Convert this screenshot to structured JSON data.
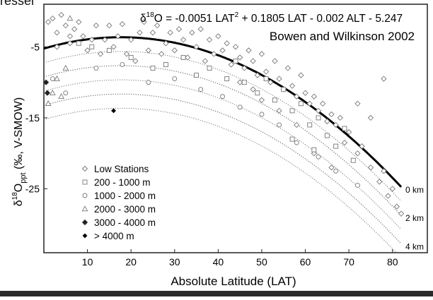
{
  "top_text_fragment": "ressei",
  "chart_data": {
    "type": "scatter",
    "title": "",
    "equation": {
      "prefix": "δ",
      "sup": "18",
      "body": "O = -0.0051 LAT",
      "sup2": "2",
      "rest": " + 0.1805 LAT - 0.002 ALT - 5.247"
    },
    "source": "Bowen and Wilkinson 2002",
    "xlabel": "Absolute Latitude (LAT)",
    "ylabel": {
      "prefix": "δ",
      "sup": "18",
      "main": "O",
      "sub": "ppt",
      "suffix": " (‰, V-SMOW)"
    },
    "xlim": [
      0,
      88
    ],
    "ylim": [
      -34,
      1
    ],
    "xticks": [
      10,
      20,
      30,
      40,
      50,
      60,
      70,
      80
    ],
    "yticks": [
      -5,
      -15,
      -25
    ],
    "curves": [
      {
        "name": "0 km",
        "alt": 0,
        "style": "thick"
      },
      {
        "name": "2 km",
        "alt": 2000,
        "style": "dotted"
      },
      {
        "name": "4 km",
        "alt": 4000,
        "style": "dotted"
      }
    ],
    "extra_dotted_altitudes": [
      1000,
      3000,
      5000
    ],
    "legend": {
      "placement": "bottom-left",
      "entries": [
        {
          "label": "Low Stations",
          "marker": "diamond-open"
        },
        {
          "label": "200 - 1000 m",
          "marker": "square-open"
        },
        {
          "label": "1000 - 2000 m",
          "marker": "circle-open"
        },
        {
          "label": "2000 - 3000 m",
          "marker": "triangle-open"
        },
        {
          "label": "3000 - 4000 m",
          "marker": "diamond-filled"
        },
        {
          "label": "> 4000 m",
          "marker": "small-diamond-filled"
        }
      ]
    },
    "series": [
      {
        "name": "Low Stations",
        "marker": "diamond-open",
        "points": [
          [
            1,
            -1.5
          ],
          [
            2,
            -1.0
          ],
          [
            3,
            -3.0
          ],
          [
            5,
            -2.0
          ],
          [
            6,
            -4.5
          ],
          [
            7,
            -2.5
          ],
          [
            8,
            -1.5
          ],
          [
            9,
            -3.5
          ],
          [
            10,
            -5.5
          ],
          [
            11,
            -4.0
          ],
          [
            12,
            -2.0
          ],
          [
            13,
            -6.0
          ],
          [
            14,
            -4.0
          ],
          [
            15,
            -2.0
          ],
          [
            16,
            -5.0
          ],
          [
            17,
            -3.5
          ],
          [
            18,
            -1.8
          ],
          [
            19,
            -6.0
          ],
          [
            20,
            -4.0
          ],
          [
            21,
            -7.0
          ],
          [
            22,
            -3.0
          ],
          [
            23,
            -1.5
          ],
          [
            24,
            -5.5
          ],
          [
            25,
            -3.0
          ],
          [
            26,
            -2.0
          ],
          [
            27,
            -6.0
          ],
          [
            28,
            -4.5
          ],
          [
            29,
            -3.0
          ],
          [
            30,
            -5.5
          ],
          [
            31,
            -2.5
          ],
          [
            32,
            -4.0
          ],
          [
            33,
            -6.5
          ],
          [
            34,
            -3.0
          ],
          [
            35,
            -5.0
          ],
          [
            36,
            -2.5
          ],
          [
            37,
            -7.0
          ],
          [
            38,
            -4.0
          ],
          [
            39,
            -6.0
          ],
          [
            40,
            -3.5
          ],
          [
            41,
            -5.5
          ],
          [
            42,
            -4.5
          ],
          [
            43,
            -7.5
          ],
          [
            44,
            -5.0
          ],
          [
            45,
            -6.5
          ],
          [
            46,
            -8.0
          ],
          [
            47,
            -5.5
          ],
          [
            48,
            -7.0
          ],
          [
            49,
            -9.0
          ],
          [
            50,
            -6.0
          ],
          [
            51,
            -8.5
          ],
          [
            52,
            -10.0
          ],
          [
            53,
            -7.0
          ],
          [
            54,
            -9.5
          ],
          [
            55,
            -11.0
          ],
          [
            56,
            -8.0
          ],
          [
            57,
            -10.5
          ],
          [
            58,
            -12.0
          ],
          [
            59,
            -9.0
          ],
          [
            60,
            -11.5
          ],
          [
            61,
            -13.0
          ],
          [
            62,
            -12.0
          ],
          [
            63,
            -14.0
          ],
          [
            64,
            -13.0
          ],
          [
            65,
            -15.5
          ],
          [
            66,
            -14.5
          ],
          [
            67,
            -16.0
          ],
          [
            68,
            -15.0
          ],
          [
            69,
            -18.5
          ],
          [
            70,
            -17.0
          ],
          [
            72,
            -20.0
          ],
          [
            73,
            -19.0
          ],
          [
            75,
            -22.0
          ],
          [
            77,
            -24.0
          ],
          [
            78,
            -22.5
          ],
          [
            79,
            -26.0
          ],
          [
            80,
            -25.0
          ],
          [
            81,
            -27.5
          ],
          [
            82,
            -28.5
          ],
          [
            72,
            -13.0
          ],
          [
            75,
            -15.0
          ],
          [
            78,
            -9.5
          ],
          [
            62,
            -20.0
          ],
          [
            66,
            -22.0
          ],
          [
            45,
            -10.0
          ],
          [
            48,
            -11.0
          ],
          [
            50,
            -12.5
          ],
          [
            54,
            -14.0
          ],
          [
            58,
            -16.0
          ],
          [
            3,
            -5.0
          ],
          [
            4,
            -0.5
          ],
          [
            6,
            -3.5
          ]
        ]
      },
      {
        "name": "200 - 1000 m",
        "marker": "square-open",
        "points": [
          [
            15,
            -5.5
          ],
          [
            20,
            -6.5
          ],
          [
            25,
            -8.0
          ],
          [
            28,
            -7.5
          ],
          [
            32,
            -6.5
          ],
          [
            35,
            -9.0
          ],
          [
            38,
            -8.0
          ],
          [
            42,
            -9.5
          ],
          [
            44,
            -7.0
          ],
          [
            46,
            -10.0
          ],
          [
            49,
            -11.5
          ],
          [
            51,
            -9.5
          ],
          [
            53,
            -12.5
          ],
          [
            55,
            -11.0
          ],
          [
            57,
            -14.0
          ],
          [
            59,
            -13.0
          ],
          [
            61,
            -16.0
          ],
          [
            63,
            -15.0
          ],
          [
            65,
            -17.5
          ],
          [
            67,
            -19.0
          ],
          [
            69,
            -16.5
          ],
          [
            71,
            -21.0
          ],
          [
            57,
            -18.0
          ],
          [
            62,
            -19.5
          ],
          [
            8,
            -4.5
          ],
          [
            11,
            -5.0
          ]
        ]
      },
      {
        "name": "1000 - 2000 m",
        "marker": "circle-open",
        "points": [
          [
            12,
            -8.0
          ],
          [
            18,
            -7.5
          ],
          [
            24,
            -10.0
          ],
          [
            30,
            -9.5
          ],
          [
            36,
            -11.0
          ],
          [
            41,
            -12.0
          ],
          [
            45,
            -13.5
          ],
          [
            50,
            -14.5
          ],
          [
            54,
            -16.0
          ],
          [
            58,
            -18.5
          ],
          [
            63,
            -20.5
          ],
          [
            67,
            -22.5
          ],
          [
            72,
            -24.5
          ],
          [
            2,
            -9.5
          ],
          [
            5,
            -11.5
          ]
        ]
      },
      {
        "name": "2000 - 3000 m",
        "marker": "triangle-open",
        "points": [
          [
            2,
            -11.5
          ],
          [
            3,
            -9.5
          ],
          [
            4,
            -12.0
          ],
          [
            5,
            -8.0
          ],
          [
            6,
            -1.0
          ],
          [
            1,
            -13.0
          ]
        ]
      },
      {
        "name": "3000 - 4000 m",
        "marker": "diamond-filled",
        "points": [
          [
            0.5,
            -10.0
          ],
          [
            0.8,
            -11.5
          ]
        ]
      },
      {
        "name": "> 4000 m",
        "marker": "small-diamond-filled",
        "points": [
          [
            16,
            -14.0
          ]
        ]
      }
    ]
  }
}
